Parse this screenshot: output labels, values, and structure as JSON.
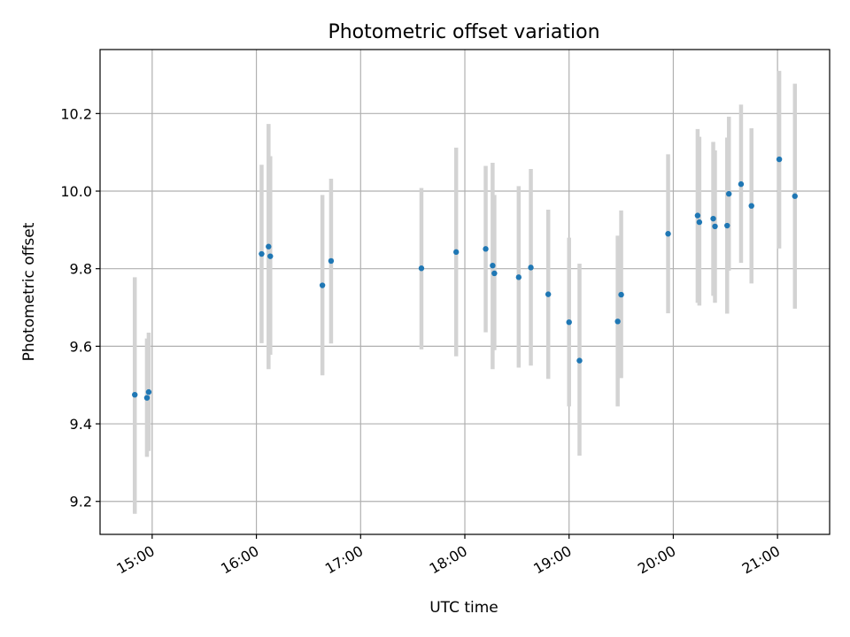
{
  "chart_data": {
    "type": "scatter",
    "title": "Photometric offset variation",
    "xlabel": "UTC time",
    "ylabel": "Photometric offset",
    "x_unit": "UTC clock time (HH:MM)",
    "xlim": [
      "14:30",
      "21:30"
    ],
    "ylim": [
      9.115,
      10.365
    ],
    "xticks": [
      "15:00",
      "16:00",
      "17:00",
      "18:00",
      "19:00",
      "20:00",
      "21:00"
    ],
    "yticks": [
      9.2,
      9.4,
      9.6,
      9.8,
      10.0,
      10.2
    ],
    "ytick_labels": [
      "9.2",
      "9.4",
      "9.6",
      "9.8",
      "10.0",
      "10.2"
    ],
    "grid": true,
    "legend": "none",
    "colors": {
      "point": "#1f77b4",
      "error_bar": "#d3d3d3",
      "grid": "#b0b0b0"
    },
    "points": [
      {
        "x": "14:50",
        "y": 9.475,
        "ylow": 9.168,
        "yhigh": 9.778
      },
      {
        "x": "14:57",
        "y": 9.467,
        "ylow": 9.315,
        "yhigh": 9.62
      },
      {
        "x": "14:58",
        "y": 9.482,
        "ylow": 9.33,
        "yhigh": 9.635
      },
      {
        "x": "16:03",
        "y": 9.838,
        "ylow": 9.608,
        "yhigh": 10.068
      },
      {
        "x": "16:07",
        "y": 9.857,
        "ylow": 9.541,
        "yhigh": 10.173
      },
      {
        "x": "16:08",
        "y": 9.832,
        "ylow": 9.578,
        "yhigh": 10.09
      },
      {
        "x": "16:38",
        "y": 9.757,
        "ylow": 9.525,
        "yhigh": 9.99
      },
      {
        "x": "16:43",
        "y": 9.82,
        "ylow": 9.607,
        "yhigh": 10.032
      },
      {
        "x": "17:35",
        "y": 9.801,
        "ylow": 9.592,
        "yhigh": 10.008
      },
      {
        "x": "17:55",
        "y": 9.843,
        "ylow": 9.574,
        "yhigh": 10.112
      },
      {
        "x": "18:12",
        "y": 9.851,
        "ylow": 9.636,
        "yhigh": 10.065
      },
      {
        "x": "18:16",
        "y": 9.808,
        "ylow": 9.541,
        "yhigh": 10.073
      },
      {
        "x": "18:17",
        "y": 9.788,
        "ylow": 9.59,
        "yhigh": 9.99
      },
      {
        "x": "18:31",
        "y": 9.778,
        "ylow": 9.545,
        "yhigh": 10.013
      },
      {
        "x": "18:38",
        "y": 9.803,
        "ylow": 9.55,
        "yhigh": 10.057
      },
      {
        "x": "18:48",
        "y": 9.734,
        "ylow": 9.516,
        "yhigh": 9.952
      },
      {
        "x": "19:00",
        "y": 9.662,
        "ylow": 9.445,
        "yhigh": 9.88
      },
      {
        "x": "19:06",
        "y": 9.563,
        "ylow": 9.318,
        "yhigh": 9.813
      },
      {
        "x": "19:28",
        "y": 9.664,
        "ylow": 9.445,
        "yhigh": 9.885
      },
      {
        "x": "19:30",
        "y": 9.733,
        "ylow": 9.518,
        "yhigh": 9.95
      },
      {
        "x": "19:57",
        "y": 9.89,
        "ylow": 9.685,
        "yhigh": 10.095
      },
      {
        "x": "20:14",
        "y": 9.937,
        "ylow": 9.712,
        "yhigh": 10.16
      },
      {
        "x": "20:15",
        "y": 9.92,
        "ylow": 9.705,
        "yhigh": 10.14
      },
      {
        "x": "20:23",
        "y": 9.929,
        "ylow": 9.73,
        "yhigh": 10.127
      },
      {
        "x": "20:24",
        "y": 9.909,
        "ylow": 9.712,
        "yhigh": 10.105
      },
      {
        "x": "20:31",
        "y": 9.911,
        "ylow": 9.684,
        "yhigh": 10.138
      },
      {
        "x": "20:32",
        "y": 9.993,
        "ylow": 9.795,
        "yhigh": 10.192
      },
      {
        "x": "20:39",
        "y": 10.018,
        "ylow": 9.815,
        "yhigh": 10.223
      },
      {
        "x": "20:45",
        "y": 9.962,
        "ylow": 9.762,
        "yhigh": 10.162
      },
      {
        "x": "21:01",
        "y": 10.082,
        "ylow": 9.852,
        "yhigh": 10.31
      },
      {
        "x": "21:10",
        "y": 9.987,
        "ylow": 9.697,
        "yhigh": 10.277
      }
    ]
  }
}
